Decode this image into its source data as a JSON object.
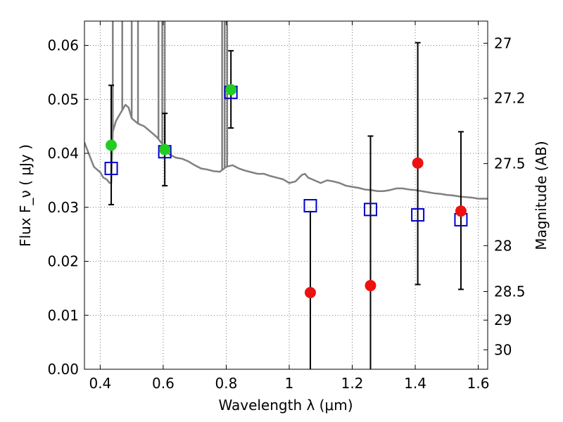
{
  "chart_data": {
    "type": "scatter",
    "xlabel": "Wavelength  λ (μm)",
    "ylabel": "Flux  F_ν  ( μJy )",
    "ylabel_right": "Magnitude (AB)",
    "xlim": [
      0.35,
      1.63
    ],
    "ylim": [
      0.0,
      0.0645
    ],
    "grid": true,
    "x_ticks": [
      0.4,
      0.6,
      0.8,
      1.0,
      1.2,
      1.4,
      1.6
    ],
    "x_tick_labels": [
      "0.4",
      "0.6",
      "0.8",
      "1",
      "1.2",
      "1.4",
      "1.6"
    ],
    "y_ticks": [
      0.0,
      0.01,
      0.02,
      0.03,
      0.04,
      0.05,
      0.06
    ],
    "y_tick_labels": [
      "0.00",
      "0.01",
      "0.02",
      "0.03",
      "0.04",
      "0.05",
      "0.06"
    ],
    "right_ticks": [
      {
        "label": "27",
        "flux": 0.0604
      },
      {
        "label": "27.2",
        "flux": 0.0502
      },
      {
        "label": "27.5",
        "flux": 0.0381
      },
      {
        "label": "28",
        "flux": 0.0229
      },
      {
        "label": "28.5",
        "flux": 0.0144
      },
      {
        "label": "29",
        "flux": 0.0091
      },
      {
        "label": "30",
        "flux": 0.0036
      }
    ],
    "colors": {
      "model": "#808080",
      "detections": "#22cc22",
      "upper": "#ee1111",
      "model_photometry": "#0000cc",
      "errorbars": "#000000"
    },
    "series": [
      {
        "kind": "model_spectrum",
        "x": [
          0.35,
          0.36,
          0.37,
          0.38,
          0.39,
          0.4,
          0.41,
          0.42,
          0.43,
          0.435,
          0.44,
          0.45,
          0.46,
          0.47,
          0.48,
          0.49,
          0.5,
          0.52,
          0.54,
          0.56,
          0.58,
          0.6,
          0.62,
          0.64,
          0.66,
          0.68,
          0.7,
          0.72,
          0.74,
          0.76,
          0.78,
          0.8,
          0.82,
          0.84,
          0.86,
          0.88,
          0.9,
          0.92,
          0.94,
          0.96,
          0.98,
          1.0,
          1.02,
          1.04,
          1.05,
          1.06,
          1.08,
          1.1,
          1.12,
          1.14,
          1.16,
          1.18,
          1.2,
          1.22,
          1.24,
          1.26,
          1.28,
          1.3,
          1.32,
          1.34,
          1.36,
          1.38,
          1.4,
          1.42,
          1.44,
          1.46,
          1.48,
          1.5,
          1.52,
          1.54,
          1.56,
          1.58,
          1.6,
          1.63
        ],
        "y": [
          0.042,
          0.0405,
          0.039,
          0.0375,
          0.037,
          0.0365,
          0.0355,
          0.0352,
          0.0345,
          0.0345,
          0.044,
          0.046,
          0.047,
          0.048,
          0.049,
          0.0485,
          0.0465,
          0.0455,
          0.045,
          0.044,
          0.043,
          0.0415,
          0.0398,
          0.0392,
          0.039,
          0.0385,
          0.0378,
          0.0372,
          0.037,
          0.0367,
          0.0366,
          0.0375,
          0.0378,
          0.0372,
          0.0368,
          0.0365,
          0.0362,
          0.0362,
          0.0358,
          0.0355,
          0.0352,
          0.0345,
          0.0348,
          0.036,
          0.0362,
          0.0355,
          0.035,
          0.0345,
          0.035,
          0.0348,
          0.0345,
          0.034,
          0.0338,
          0.0336,
          0.0333,
          0.0332,
          0.033,
          0.033,
          0.0332,
          0.0335,
          0.0335,
          0.0333,
          0.0332,
          0.033,
          0.0328,
          0.0326,
          0.0325,
          0.0323,
          0.0322,
          0.032,
          0.0319,
          0.0318,
          0.0316,
          0.0316
        ],
        "emission_lines_x": [
          0.44,
          0.47,
          0.5,
          0.52,
          0.585,
          0.597,
          0.605,
          0.787,
          0.795,
          0.803
        ]
      },
      {
        "kind": "model_photometry",
        "marker": "open-square",
        "x": [
          0.435,
          0.605,
          0.815,
          1.067,
          1.258,
          1.408,
          1.545
        ],
        "y": [
          0.0372,
          0.0403,
          0.0513,
          0.0303,
          0.0296,
          0.0286,
          0.0277
        ]
      },
      {
        "kind": "detections",
        "marker": "filled-circle",
        "x": [
          0.435,
          0.605,
          0.815
        ],
        "y": [
          0.0415,
          0.0407,
          0.0518
        ],
        "err_low": [
          0.0305,
          0.034,
          0.0447
        ],
        "err_high": [
          0.0526,
          0.0474,
          0.059
        ]
      },
      {
        "kind": "upper_limits",
        "marker": "filled-circle",
        "x": [
          1.067,
          1.258,
          1.408,
          1.545
        ],
        "y": [
          0.0142,
          0.0155,
          0.0382,
          0.0293
        ],
        "err_low": [
          0.0,
          0.0,
          0.0157,
          0.0148
        ],
        "err_high": [
          0.0292,
          0.0432,
          0.0605,
          0.044
        ]
      }
    ]
  }
}
